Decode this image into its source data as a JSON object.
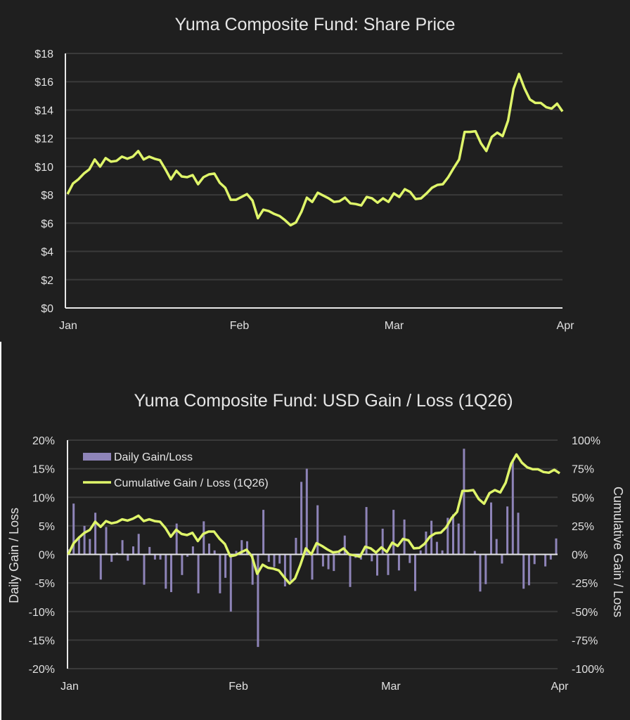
{
  "colors": {
    "background": "#1f1f1f",
    "price_line": "#dff56a",
    "bar": "#8e84b8",
    "cumulative_line": "#dff56a",
    "left_axis_title": "#9a8fd0",
    "right_axis_title": "#d9ef5f",
    "text": "#e0e0e0",
    "grid": "#3a3a3a"
  },
  "chart_data": [
    {
      "type": "line",
      "title": "Yuma Composite Fund: Share Price",
      "xlabel": "",
      "ylabel": "",
      "x_ticks": [
        "Jan",
        "Feb",
        "Mar",
        "Apr"
      ],
      "x_tick_days": [
        0,
        31,
        59,
        90
      ],
      "xlim_days": [
        0,
        90
      ],
      "y_ticks": [
        "$0",
        "$2",
        "$4",
        "$6",
        "$8",
        "$10",
        "$12",
        "$14",
        "$16",
        "$18"
      ],
      "ylim": [
        0,
        18
      ],
      "grid": true,
      "series": [
        {
          "name": "Share Price",
          "values": [
            8.05,
            8.8,
            9.1,
            9.5,
            9.8,
            10.5,
            10.0,
            10.6,
            10.35,
            10.4,
            10.7,
            10.55,
            10.7,
            11.1,
            10.5,
            10.7,
            10.55,
            10.45,
            9.8,
            9.1,
            9.7,
            9.3,
            9.25,
            9.4,
            8.75,
            9.25,
            9.45,
            9.5,
            8.85,
            8.5,
            7.65,
            7.65,
            7.85,
            8.05,
            7.6,
            6.35,
            6.95,
            6.85,
            6.65,
            6.5,
            6.2,
            5.85,
            6.05,
            6.8,
            7.8,
            7.5,
            8.15,
            7.95,
            7.75,
            7.5,
            7.55,
            7.8,
            7.4,
            7.35,
            7.25,
            7.85,
            7.75,
            7.45,
            7.75,
            7.5,
            8.1,
            7.85,
            8.4,
            8.2,
            7.7,
            7.75,
            8.1,
            8.5,
            8.7,
            8.75,
            9.25,
            9.9,
            10.5,
            12.45,
            12.45,
            12.5,
            11.65,
            11.1,
            12.1,
            12.4,
            12.15,
            13.25,
            15.5,
            16.55,
            15.55,
            14.75,
            14.5,
            14.5,
            14.2,
            14.1,
            14.45,
            13.9
          ]
        }
      ]
    },
    {
      "type": "bar+line",
      "title": "Yuma Composite Fund: USD Gain / Loss (1Q26)",
      "xlabel": "",
      "ylabel": "Daily Gain / Loss",
      "y2label": "Cumulative Gain / Loss",
      "x_ticks": [
        "Jan",
        "Feb",
        "Mar",
        "Apr"
      ],
      "x_tick_days": [
        0,
        31,
        59,
        90
      ],
      "xlim_days": [
        0,
        90
      ],
      "y_ticks": [
        "20%",
        "15%",
        "10%",
        "5%",
        "0%",
        "-5%",
        "-10%",
        "-15%",
        "-20%"
      ],
      "ylim": [
        -20,
        20
      ],
      "y2_ticks": [
        "100%",
        "75%",
        "50%",
        "25%",
        "0%",
        "-25%",
        "-50%",
        "-75%",
        "-100%"
      ],
      "y2lim": [
        -100,
        100
      ],
      "grid": true,
      "legend_position": "top-left",
      "legend": [
        "Daily Gain/Loss",
        "Cumulative Gain / Loss (1Q26)"
      ],
      "series": [
        {
          "name": "Daily Gain/Loss",
          "axis": "left",
          "type": "bar",
          "values": [
            0.9,
            8.9,
            3.1,
            5.0,
            2.7,
            7.3,
            -4.4,
            4.8,
            -1.3,
            0.3,
            2.5,
            -1.1,
            1.4,
            3.6,
            -5.3,
            1.3,
            -0.9,
            -0.9,
            -6.0,
            -6.6,
            5.4,
            -3.6,
            -0.4,
            1.4,
            -6.8,
            5.8,
            1.9,
            0.7,
            -6.8,
            -4.1,
            -10.0,
            0.6,
            2.5,
            2.3,
            -5.3,
            -16.2,
            7.8,
            -1.3,
            -2.2,
            -1.6,
            -5.6,
            -4.6,
            2.9,
            12.7,
            15.0,
            -4.4,
            8.6,
            -2.1,
            -2.6,
            -2.9,
            0.6,
            3.3,
            -5.7,
            -0.6,
            -0.9,
            8.3,
            -1.2,
            -3.7,
            4.5,
            -3.6,
            7.8,
            -2.8,
            6.1,
            -1.5,
            -6.4,
            0.7,
            4.0,
            5.9,
            2.2,
            0.7,
            6.4,
            7.0,
            5.4,
            18.5,
            0.0,
            0.6,
            -6.5,
            -5.2,
            9.1,
            2.7,
            -1.6,
            8.4,
            16.6,
            7.3,
            -6.0,
            -5.4,
            -1.7,
            0.0,
            -2.1,
            -0.9,
            2.8
          ]
        },
        {
          "name": "Cumulative Gain / Loss (1Q26)",
          "axis": "right",
          "type": "line",
          "values": [
            0,
            9.7,
            14.8,
            18.9,
            21.4,
            28.6,
            24.1,
            29.2,
            27.2,
            28.2,
            30.7,
            29.6,
            31.3,
            33.9,
            29.2,
            30.7,
            29.2,
            28.6,
            23.1,
            15.5,
            21.6,
            17.9,
            16.9,
            18.9,
            11.7,
            17.9,
            20.0,
            20.0,
            13.8,
            9.1,
            -1.6,
            -0.6,
            1.9,
            4.1,
            -1.6,
            -17.0,
            -9.0,
            -11.7,
            -12.5,
            -14.0,
            -20.0,
            -25.5,
            -21.0,
            -9.0,
            5.3,
            0.0,
            9.9,
            7.4,
            4.3,
            1.8,
            2.3,
            5.3,
            0.0,
            -0.8,
            -2.0,
            6.8,
            5.3,
            1.6,
            6.2,
            2.1,
            10.3,
            7.4,
            13.6,
            12.3,
            5.3,
            5.7,
            9.4,
            15.6,
            18.5,
            19.1,
            23.8,
            32.0,
            37.2,
            55.6,
            55.6,
            56.3,
            48.5,
            44.4,
            53.6,
            56.3,
            54.2,
            62.8,
            79.3,
            87.5,
            80.3,
            76.2,
            74.5,
            74.5,
            72.1,
            71.5,
            74.1,
            71.0
          ]
        }
      ]
    }
  ]
}
